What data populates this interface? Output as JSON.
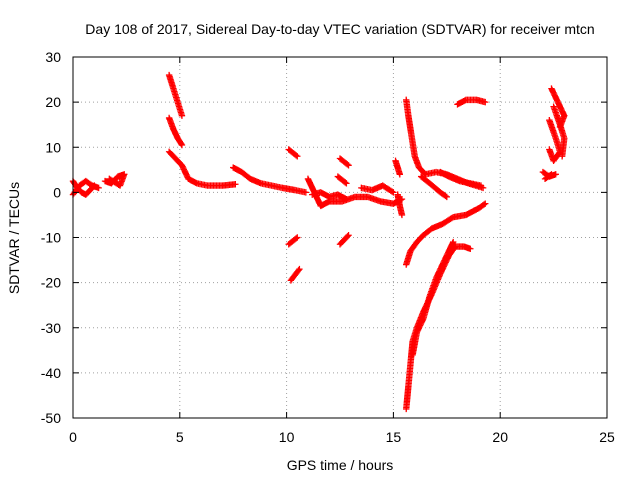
{
  "chart_data": {
    "type": "scatter",
    "title": "Day 108 of 2017, Sidereal Day-to-day VTEC variation (SDTVAR) for receiver mtcn",
    "xlabel": "GPS time / hours",
    "ylabel": "SDTVAR / TECUs",
    "xlim": [
      0,
      25
    ],
    "ylim": [
      -50,
      30
    ],
    "xticks": [
      "0",
      "5",
      "10",
      "15",
      "20",
      "25"
    ],
    "yticks": [
      "-50",
      "-40",
      "-30",
      "-20",
      "-10",
      "0",
      "10",
      "20",
      "30"
    ],
    "grid": true,
    "marker": "+",
    "color": "#ff0000",
    "segments": [
      [
        [
          0.0,
          2.5
        ],
        [
          0.2,
          1.0
        ],
        [
          0.4,
          0.0
        ],
        [
          0.6,
          -0.5
        ],
        [
          0.8,
          0.5
        ],
        [
          1.0,
          1.5
        ]
      ],
      [
        [
          0.0,
          -0.5
        ],
        [
          0.3,
          1.5
        ],
        [
          0.6,
          2.5
        ],
        [
          0.9,
          1.5
        ],
        [
          1.2,
          1.0
        ]
      ],
      [
        [
          1.5,
          2.5
        ],
        [
          1.8,
          2.0
        ],
        [
          2.1,
          3.5
        ],
        [
          2.4,
          4.0
        ],
        [
          2.2,
          1.5
        ],
        [
          1.7,
          3.0
        ]
      ],
      [
        [
          4.5,
          26.0
        ],
        [
          4.7,
          23.0
        ],
        [
          4.9,
          20.0
        ],
        [
          5.1,
          17.0
        ]
      ],
      [
        [
          4.5,
          16.5
        ],
        [
          4.7,
          14.0
        ],
        [
          4.9,
          12.0
        ],
        [
          5.1,
          10.5
        ]
      ],
      [
        [
          4.5,
          9.0
        ],
        [
          4.8,
          7.5
        ],
        [
          5.1,
          6.0
        ],
        [
          5.4,
          3.0
        ],
        [
          5.8,
          2.0
        ],
        [
          6.3,
          1.5
        ],
        [
          7.0,
          1.5
        ],
        [
          7.6,
          1.8
        ]
      ],
      [
        [
          7.5,
          5.5
        ],
        [
          7.9,
          4.5
        ],
        [
          8.3,
          3.0
        ],
        [
          8.8,
          2.0
        ],
        [
          9.3,
          1.5
        ],
        [
          9.8,
          1.0
        ],
        [
          10.4,
          0.5
        ],
        [
          10.9,
          0.0
        ]
      ],
      [
        [
          10.1,
          9.5
        ],
        [
          10.5,
          8.0
        ]
      ],
      [
        [
          10.1,
          -11.5
        ],
        [
          10.5,
          -10.0
        ]
      ],
      [
        [
          10.2,
          -19.5
        ],
        [
          10.6,
          -17.0
        ]
      ],
      [
        [
          11.0,
          3.0
        ],
        [
          11.2,
          1.0
        ],
        [
          11.4,
          -1.0
        ],
        [
          11.6,
          -3.0
        ],
        [
          12.0,
          -2.0
        ],
        [
          12.6,
          -2.0
        ],
        [
          13.2,
          -1.0
        ],
        [
          13.8,
          -1.0
        ],
        [
          14.4,
          -2.0
        ],
        [
          15.0,
          -2.5
        ],
        [
          15.4,
          -1.5
        ]
      ],
      [
        [
          11.2,
          -0.5
        ],
        [
          11.6,
          0.0
        ],
        [
          12.0,
          -1.0
        ],
        [
          12.4,
          -0.5
        ],
        [
          12.8,
          -1.5
        ]
      ],
      [
        [
          12.5,
          7.5
        ],
        [
          12.9,
          6.0
        ]
      ],
      [
        [
          12.4,
          3.5
        ],
        [
          12.8,
          2.0
        ]
      ],
      [
        [
          12.5,
          -11.5
        ],
        [
          12.9,
          -9.5
        ]
      ],
      [
        [
          13.5,
          1.0
        ],
        [
          14.0,
          0.5
        ],
        [
          14.5,
          1.5
        ],
        [
          15.0,
          0.0
        ]
      ],
      [
        [
          15.1,
          7.0
        ],
        [
          15.2,
          5.5
        ],
        [
          15.3,
          4.0
        ]
      ],
      [
        [
          15.2,
          -0.5
        ],
        [
          15.3,
          -3.0
        ],
        [
          15.4,
          -5.0
        ]
      ],
      [
        [
          15.6,
          20.5
        ],
        [
          15.7,
          17.0
        ],
        [
          15.8,
          14.0
        ],
        [
          15.9,
          11.0
        ],
        [
          16.0,
          8.0
        ],
        [
          16.2,
          5.5
        ],
        [
          16.5,
          4.0
        ],
        [
          17.0,
          4.5
        ],
        [
          17.5,
          4.0
        ],
        [
          18.0,
          3.0
        ],
        [
          18.5,
          2.0
        ],
        [
          19.2,
          1.0
        ]
      ],
      [
        [
          17.2,
          4.5
        ],
        [
          17.6,
          3.5
        ],
        [
          18.1,
          2.5
        ],
        [
          18.6,
          2.0
        ],
        [
          19.1,
          1.5
        ]
      ],
      [
        [
          18.0,
          19.5
        ],
        [
          18.4,
          20.5
        ],
        [
          18.9,
          20.5
        ],
        [
          19.3,
          20.0
        ]
      ],
      [
        [
          16.3,
          3.5
        ],
        [
          16.7,
          2.0
        ],
        [
          17.2,
          0.0
        ],
        [
          17.5,
          -1.0
        ]
      ],
      [
        [
          15.6,
          -16.0
        ],
        [
          15.8,
          -13.0
        ],
        [
          16.1,
          -11.0
        ],
        [
          16.4,
          -9.5
        ],
        [
          16.8,
          -8.0
        ],
        [
          17.3,
          -7.0
        ],
        [
          17.8,
          -5.5
        ],
        [
          18.4,
          -5.0
        ],
        [
          19.0,
          -3.5
        ],
        [
          19.3,
          -2.5
        ]
      ],
      [
        [
          15.6,
          -48.0
        ],
        [
          15.7,
          -43.0
        ],
        [
          15.8,
          -38.0
        ],
        [
          15.9,
          -33.0
        ],
        [
          16.1,
          -30.0
        ],
        [
          16.4,
          -26.5
        ],
        [
          16.8,
          -22.5
        ],
        [
          17.2,
          -18.0
        ],
        [
          17.6,
          -14.0
        ],
        [
          17.9,
          -12.0
        ],
        [
          18.3,
          -12.0
        ],
        [
          18.6,
          -12.5
        ]
      ],
      [
        [
          15.9,
          -36.0
        ],
        [
          16.1,
          -31.0
        ],
        [
          16.4,
          -28.0
        ],
        [
          16.7,
          -23.0
        ],
        [
          17.0,
          -19.0
        ],
        [
          17.3,
          -16.0
        ],
        [
          17.6,
          -13.0
        ],
        [
          17.8,
          -11.0
        ]
      ],
      [
        [
          22.0,
          4.5
        ],
        [
          22.3,
          3.5
        ],
        [
          22.6,
          4.0
        ]
      ],
      [
        [
          22.1,
          3.0
        ],
        [
          22.4,
          4.0
        ]
      ],
      [
        [
          22.4,
          23.0
        ],
        [
          22.7,
          20.0
        ],
        [
          23.0,
          17.0
        ],
        [
          22.8,
          14.5
        ]
      ],
      [
        [
          22.3,
          16.0
        ],
        [
          22.6,
          12.0
        ],
        [
          22.8,
          9.0
        ],
        [
          22.5,
          7.0
        ],
        [
          22.3,
          9.5
        ]
      ],
      [
        [
          22.5,
          19.0
        ],
        [
          22.8,
          15.0
        ],
        [
          23.0,
          12.0
        ],
        [
          22.9,
          8.0
        ]
      ]
    ]
  }
}
